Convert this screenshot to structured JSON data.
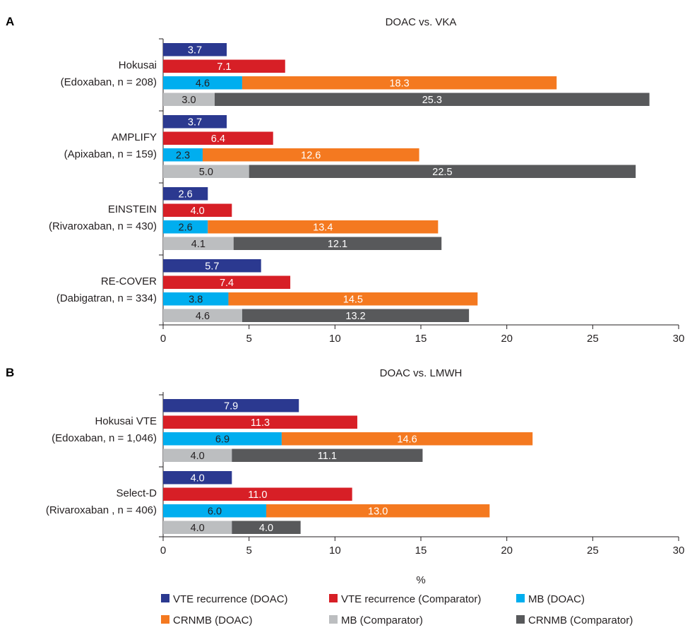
{
  "chart_data": {
    "type": "bar",
    "orientation": "horizontal",
    "stacked_segments": true,
    "xlim": [
      0,
      30
    ],
    "xticks": [
      0,
      5,
      10,
      15,
      20,
      25,
      30
    ],
    "xlabel": "%",
    "legend": {
      "placement": "bottom",
      "entries": [
        {
          "key": "vte_doac",
          "label": "VTE recurrence (DOAC)",
          "color": "#2b3990"
        },
        {
          "key": "vte_comp",
          "label": "VTE recurrence (Comparator)",
          "color": "#d71f26"
        },
        {
          "key": "mb_doac",
          "label": "MB (DOAC)",
          "color": "#00aeef"
        },
        {
          "key": "crnmb_doac",
          "label": "CRNMB (DOAC)",
          "color": "#f47920"
        },
        {
          "key": "mb_comp",
          "label": "MB (Comparator)",
          "color": "#bcbec0"
        },
        {
          "key": "crnmb_comp",
          "label": "CRNMB (Comparator)",
          "color": "#58595b"
        }
      ]
    },
    "panels": [
      {
        "letter": "A",
        "title": "DOAC vs. VKA",
        "groups": [
          {
            "name": "Hokusai",
            "subname": "(Edoxaban, n = 208)",
            "vte_doac": 3.7,
            "vte_comp": 7.1,
            "mb_doac": 4.6,
            "crnmb_doac": 18.3,
            "mb_comp": 3.0,
            "crnmb_comp": 25.3
          },
          {
            "name": "AMPLIFY",
            "subname": "(Apixaban, n = 159)",
            "vte_doac": 3.7,
            "vte_comp": 6.4,
            "mb_doac": 2.3,
            "crnmb_doac": 12.6,
            "mb_comp": 5.0,
            "crnmb_comp": 22.5
          },
          {
            "name": "EINSTEIN",
            "subname": "(Rivaroxaban, n = 430)",
            "vte_doac": 2.6,
            "vte_comp": 4.0,
            "mb_doac": 2.6,
            "crnmb_doac": 13.4,
            "mb_comp": 4.1,
            "crnmb_comp": 12.1
          },
          {
            "name": "RE-COVER",
            "subname": "(Dabigatran, n = 334)",
            "vte_doac": 5.7,
            "vte_comp": 7.4,
            "mb_doac": 3.8,
            "crnmb_doac": 14.5,
            "mb_comp": 4.6,
            "crnmb_comp": 13.2
          }
        ]
      },
      {
        "letter": "B",
        "title": "DOAC vs. LMWH",
        "groups": [
          {
            "name": "Hokusai VTE",
            "subname": "(Edoxaban, n = 1,046)",
            "vte_doac": 7.9,
            "vte_comp": 11.3,
            "mb_doac": 6.9,
            "crnmb_doac": 14.6,
            "mb_comp": 4.0,
            "crnmb_comp": 11.1
          },
          {
            "name": "Select-D",
            "subname": "(Rivaroxaban , n = 406)",
            "vte_doac": 4.0,
            "vte_comp": 11.0,
            "mb_doac": 6.0,
            "crnmb_doac": 13.0,
            "mb_comp": 4.0,
            "crnmb_comp": 4.0
          }
        ]
      }
    ]
  }
}
